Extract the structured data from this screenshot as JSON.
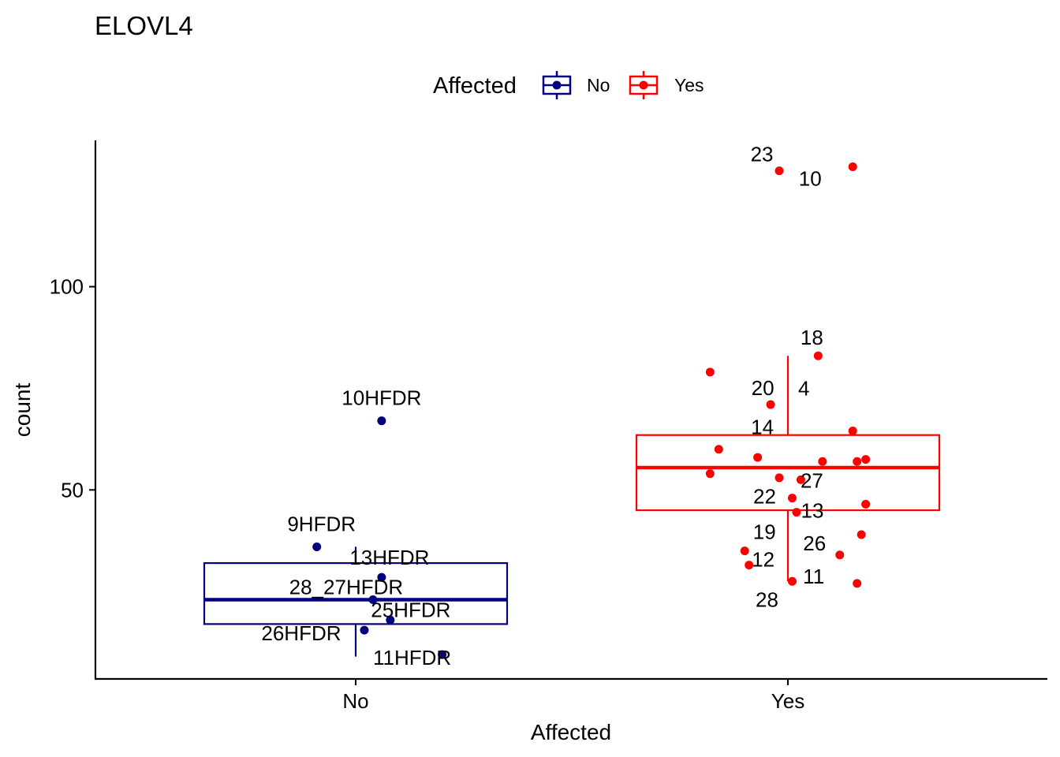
{
  "chart_data": {
    "type": "box",
    "title": "ELOVL4",
    "xlabel": "Affected",
    "ylabel": "count",
    "ylim": [
      3.5,
      136
    ],
    "y_ticks": [
      50,
      100
    ],
    "categories": [
      "No",
      "Yes"
    ],
    "legend": {
      "title": "Affected",
      "position": "top",
      "entries": [
        {
          "label": "No",
          "color": "#000080"
        },
        {
          "label": "Yes",
          "color": "#ff0000"
        }
      ]
    },
    "groups": [
      {
        "name": "No",
        "color": "#000080",
        "box": {
          "whisker_low": 9,
          "q1": 17,
          "median": 23,
          "q3": 32,
          "whisker_high": 36
        },
        "points": [
          {
            "x": 0.06,
            "y": 67,
            "label": "10HFDR"
          },
          {
            "x": -0.09,
            "y": 36,
            "label": "9HFDR"
          },
          {
            "x": 0.06,
            "y": 28.5,
            "label": "13HFDR"
          },
          {
            "x": 0.04,
            "y": 23,
            "label": "28_27HFDR"
          },
          {
            "x": 0.08,
            "y": 18,
            "label": "25HFDR"
          },
          {
            "x": 0.02,
            "y": 15.5,
            "label": "26HFDR"
          },
          {
            "x": 0.2,
            "y": 9.5,
            "label": "11HFDR"
          }
        ]
      },
      {
        "name": "Yes",
        "color": "#ff0000",
        "box": {
          "whisker_low": 27.5,
          "q1": 45,
          "median": 55.5,
          "q3": 63.5,
          "whisker_high": 83
        },
        "points": [
          {
            "x": -0.02,
            "y": 128.5,
            "label": "23"
          },
          {
            "x": 0.15,
            "y": 129.5,
            "label": "10"
          },
          {
            "x": 0.07,
            "y": 83,
            "label": "18"
          },
          {
            "x": -0.18,
            "y": 79,
            "label": ""
          },
          {
            "x": -0.04,
            "y": 71,
            "label": "20"
          },
          {
            "x": 0.15,
            "y": 64.5,
            "label": "4"
          },
          {
            "x": -0.16,
            "y": 60,
            "label": ""
          },
          {
            "x": -0.07,
            "y": 58,
            "label": ""
          },
          {
            "x": 0.08,
            "y": 57,
            "label": ""
          },
          {
            "x": 0.16,
            "y": 57,
            "label": ""
          },
          {
            "x": 0.18,
            "y": 57.5,
            "label": "14"
          },
          {
            "x": -0.18,
            "y": 54,
            "label": ""
          },
          {
            "x": -0.02,
            "y": 53,
            "label": ""
          },
          {
            "x": 0.03,
            "y": 52.5,
            "label": "27"
          },
          {
            "x": 0.01,
            "y": 48,
            "label": "22"
          },
          {
            "x": 0.18,
            "y": 46.5,
            "label": ""
          },
          {
            "x": 0.02,
            "y": 44.5,
            "label": "13"
          },
          {
            "x": -0.1,
            "y": 35,
            "label": "19"
          },
          {
            "x": 0.12,
            "y": 34,
            "label": "26"
          },
          {
            "x": -0.09,
            "y": 31.5,
            "label": "12"
          },
          {
            "x": 0.17,
            "y": 39,
            "label": ""
          },
          {
            "x": 0.16,
            "y": 27,
            "label": "11"
          },
          {
            "x": 0.01,
            "y": 27.5,
            "label": "28"
          }
        ]
      }
    ]
  },
  "labels": {
    "No": {
      "10HFDR": [
        0,
        -20,
        "middle"
      ],
      "9HFDR": [
        6,
        -20,
        "middle"
      ],
      "13HFDR": [
        10,
        -16,
        "middle"
      ],
      "28_27HFDR": [
        -34,
        -7,
        "middle"
      ],
      "25HFDR": [
        26,
        -4,
        "middle"
      ],
      "26HFDR": [
        -80,
        13,
        "middle"
      ],
      "11HFDR": [
        -38,
        13,
        "middle"
      ]
    },
    "Yes": {
      "23": [
        -22,
        -12,
        "middle"
      ],
      "10": [
        -54,
        24,
        "middle"
      ],
      "18": [
        -8,
        -14,
        "middle"
      ],
      "20": [
        -10,
        -12,
        "middle"
      ],
      "4": [
        -62,
        -45,
        "middle"
      ],
      "14": [
        -131,
        -32,
        "middle"
      ],
      "27": [
        14,
        10,
        "middle"
      ],
      "22": [
        -35,
        7,
        "middle"
      ],
      "13": [
        20,
        7,
        "middle"
      ],
      "19": [
        25,
        -15,
        "middle"
      ],
      "26": [
        -32,
        -6,
        "middle"
      ],
      "12": [
        18,
        2,
        "middle"
      ],
      "11": [
        -55,
        0,
        "middle"
      ],
      "28": [
        -32,
        32,
        "middle"
      ]
    }
  }
}
